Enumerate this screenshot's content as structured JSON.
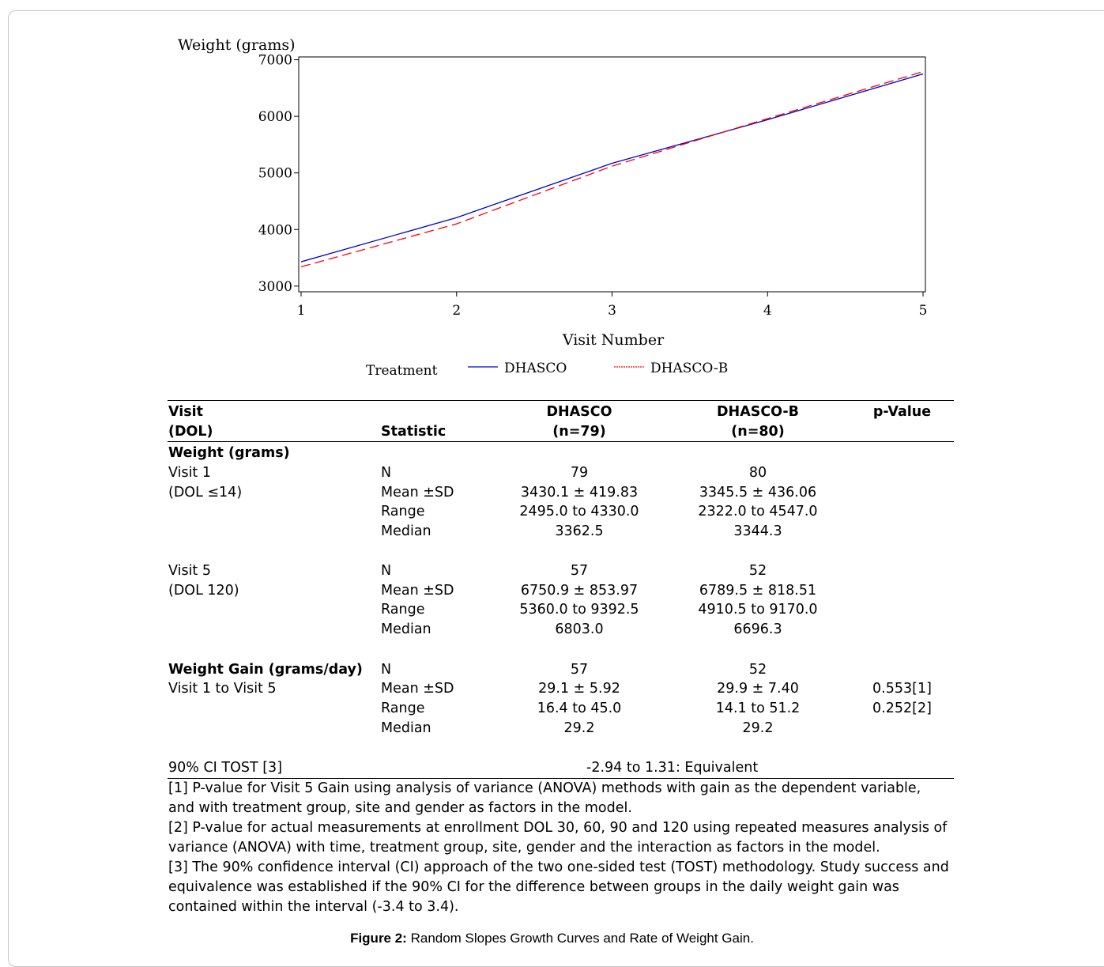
{
  "chart_data": {
    "type": "line",
    "ylabel": "Weight (grams)",
    "xlabel": "Visit Number",
    "x": [
      1,
      2,
      3,
      4,
      5
    ],
    "xlim": [
      1,
      5
    ],
    "ylim": [
      2900,
      7050
    ],
    "yticks": [
      3000,
      4000,
      5000,
      6000,
      7000
    ],
    "xticks": [
      1,
      2,
      3,
      4,
      5
    ],
    "legend_title": "Treatment",
    "legend_position": "bottom",
    "series": [
      {
        "name": "DHASCO",
        "values": [
          3430,
          4210,
          5170,
          5940,
          6750
        ],
        "color": "#0000cc",
        "style": "solid"
      },
      {
        "name": "DHASCO-B",
        "values": [
          3340,
          4100,
          5120,
          5960,
          6790
        ],
        "color": "#ff0000",
        "style": "dashed"
      }
    ]
  },
  "table": {
    "header": {
      "visit_line1": "Visit",
      "visit_line2": "(DOL)",
      "statistic": "Statistic",
      "g1_line1": "DHASCO",
      "g1_line2": "(n=79)",
      "g2_line1": "DHASCO-B",
      "g2_line2": "(n=80)",
      "pvalue": "p-Value"
    },
    "section1_title": "Weight (grams)",
    "v1": {
      "label1": "Visit 1",
      "label2": "(DOL ≤14)",
      "rows": [
        {
          "stat": "N",
          "g1": "79",
          "g2": "80",
          "p": ""
        },
        {
          "stat": "Mean ±SD",
          "g1": "3430.1 ± 419.83",
          "g2": "3345.5 ± 436.06",
          "p": ""
        },
        {
          "stat": "Range",
          "g1": "2495.0 to 4330.0",
          "g2": "2322.0 to 4547.0",
          "p": ""
        },
        {
          "stat": "Median",
          "g1": "3362.5",
          "g2": "3344.3",
          "p": ""
        }
      ]
    },
    "v5": {
      "label1": "Visit 5",
      "label2": "(DOL 120)",
      "rows": [
        {
          "stat": "N",
          "g1": "57",
          "g2": "52",
          "p": ""
        },
        {
          "stat": "Mean ±SD",
          "g1": "6750.9 ± 853.97",
          "g2": "6789.5 ± 818.51",
          "p": ""
        },
        {
          "stat": "Range",
          "g1": "5360.0 to 9392.5",
          "g2": "4910.5 to 9170.0",
          "p": ""
        },
        {
          "stat": "Median",
          "g1": "6803.0",
          "g2": "6696.3",
          "p": ""
        }
      ]
    },
    "gain": {
      "label1": "Weight Gain (grams/day)",
      "label2": "Visit 1 to Visit 5",
      "rows": [
        {
          "stat": "N",
          "g1": "57",
          "g2": "52",
          "p": ""
        },
        {
          "stat": "Mean ±SD",
          "g1": "29.1 ± 5.92",
          "g2": "29.9 ± 7.40",
          "p": "0.553[1]"
        },
        {
          "stat": "Range",
          "g1": "16.4 to 45.0",
          "g2": "14.1 to 51.2",
          "p": "0.252[2]"
        },
        {
          "stat": "Median",
          "g1": "29.2",
          "g2": "29.2",
          "p": ""
        }
      ]
    },
    "ci_label": "90% CI TOST [3]",
    "ci_value": "-2.94 to 1.31: Equivalent"
  },
  "footnotes": {
    "n1": "[1] P-value for Visit 5 Gain using analysis of variance (ANOVA) methods with gain as the dependent variable, and with treatment group, site and gender as factors in the model.",
    "n2": "[2] P-value for actual measurements at enrollment DOL 30, 60, 90 and 120 using repeated measures analysis of variance (ANOVA) with time, treatment group, site, gender and the interaction as factors in the model.",
    "n3": "[3] The 90% confidence interval (CI) approach of the two one-sided test (TOST) methodology.  Study success and equivalence was established if the 90% CI for the difference between groups in the daily weight gain was contained within the interval (-3.4 to 3.4)."
  },
  "caption": {
    "label": "Figure 2:",
    "text": " Random Slopes Growth Curves and Rate of Weight Gain."
  }
}
